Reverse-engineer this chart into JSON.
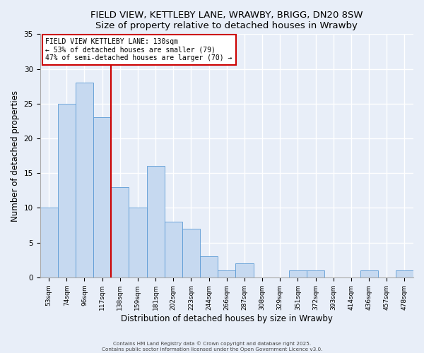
{
  "title": "FIELD VIEW, KETTLEBY LANE, WRAWBY, BRIGG, DN20 8SW",
  "subtitle": "Size of property relative to detached houses in Wrawby",
  "xlabel": "Distribution of detached houses by size in Wrawby",
  "ylabel": "Number of detached properties",
  "categories": [
    "53sqm",
    "74sqm",
    "96sqm",
    "117sqm",
    "138sqm",
    "159sqm",
    "181sqm",
    "202sqm",
    "223sqm",
    "244sqm",
    "266sqm",
    "287sqm",
    "308sqm",
    "329sqm",
    "351sqm",
    "372sqm",
    "393sqm",
    "414sqm",
    "436sqm",
    "457sqm",
    "478sqm"
  ],
  "values": [
    10,
    25,
    28,
    23,
    13,
    10,
    16,
    8,
    7,
    3,
    1,
    2,
    0,
    0,
    1,
    1,
    0,
    0,
    1,
    0,
    1
  ],
  "bar_color": "#c6d9f0",
  "bar_edge_color": "#5b9bd5",
  "property_line_color": "#cc0000",
  "property_line_label": "FIELD VIEW KETTLEBY LANE: 130sqm",
  "annotation_line1": "← 53% of detached houses are smaller (79)",
  "annotation_line2": "47% of semi-detached houses are larger (70) →",
  "ylim": [
    0,
    35
  ],
  "yticks": [
    0,
    5,
    10,
    15,
    20,
    25,
    30,
    35
  ],
  "background_color": "#e8eef8",
  "footer1": "Contains HM Land Registry data © Crown copyright and database right 2025.",
  "footer2": "Contains public sector information licensed under the Open Government Licence v3.0."
}
